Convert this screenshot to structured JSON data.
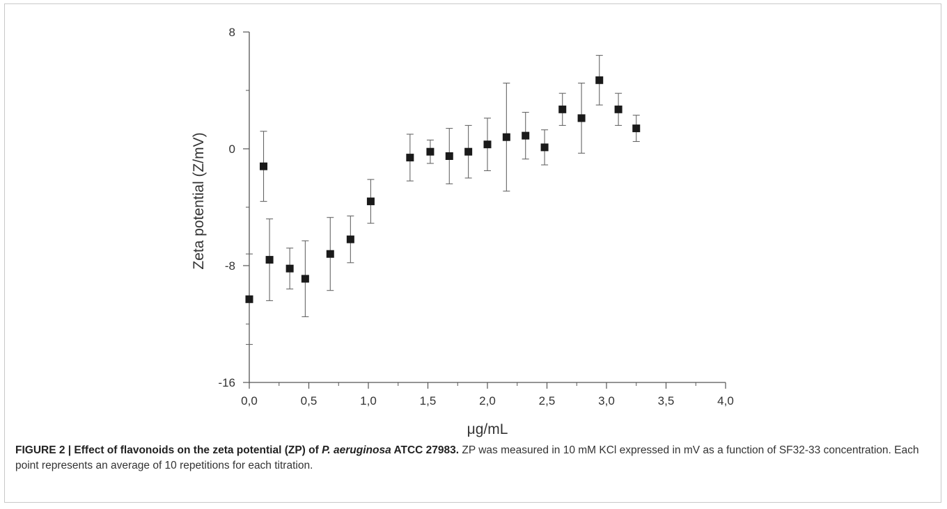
{
  "chart_data": {
    "type": "scatter",
    "xlabel": "μg/mL",
    "ylabel": "Zeta potential (Z/mV)",
    "xlim": [
      0,
      4
    ],
    "ylim": [
      -16,
      8
    ],
    "x_ticks": [
      "0,0",
      "0,5",
      "1,0",
      "1,5",
      "2,0",
      "2,5",
      "3,0",
      "3,5",
      "4,0"
    ],
    "y_ticks": [
      "8",
      "0",
      "-8",
      "-16"
    ],
    "grid": false,
    "marker": "square",
    "marker_color": "#1a1a1a",
    "points": [
      {
        "x": 0.0,
        "y": -10.3,
        "err": 3.1
      },
      {
        "x": 0.12,
        "y": -1.2,
        "err": 2.4
      },
      {
        "x": 0.17,
        "y": -7.6,
        "err": 2.8
      },
      {
        "x": 0.34,
        "y": -8.2,
        "err": 1.4
      },
      {
        "x": 0.47,
        "y": -8.9,
        "err": 2.6
      },
      {
        "x": 0.68,
        "y": -7.2,
        "err": 2.5
      },
      {
        "x": 0.85,
        "y": -6.2,
        "err": 1.6
      },
      {
        "x": 1.02,
        "y": -3.6,
        "err": 1.5
      },
      {
        "x": 1.35,
        "y": -0.6,
        "err": 1.6
      },
      {
        "x": 1.52,
        "y": -0.2,
        "err": 0.8
      },
      {
        "x": 1.68,
        "y": -0.5,
        "err": 1.9
      },
      {
        "x": 1.84,
        "y": -0.2,
        "err": 1.8
      },
      {
        "x": 2.0,
        "y": 0.3,
        "err": 1.8
      },
      {
        "x": 2.16,
        "y": 0.8,
        "err": 3.7
      },
      {
        "x": 2.32,
        "y": 0.9,
        "err": 1.6
      },
      {
        "x": 2.48,
        "y": 0.1,
        "err": 1.2
      },
      {
        "x": 2.63,
        "y": 2.7,
        "err": 1.1
      },
      {
        "x": 2.79,
        "y": 2.1,
        "err": 2.4
      },
      {
        "x": 2.94,
        "y": 4.7,
        "err": 1.7
      },
      {
        "x": 3.1,
        "y": 2.7,
        "err": 1.1
      },
      {
        "x": 3.25,
        "y": 1.4,
        "err": 0.9
      }
    ]
  },
  "caption": {
    "label": "FIGURE 2 | Effect of flavonoids on the zeta potential (ZP) of ",
    "species": "P. aeruginosa",
    "strain": " ATCC 27983.",
    "body": " ZP was measured in 10 mM KCl expressed in mV as a function of SF32-33 concentration. Each point represents an average of 10 repetitions for each titration."
  }
}
